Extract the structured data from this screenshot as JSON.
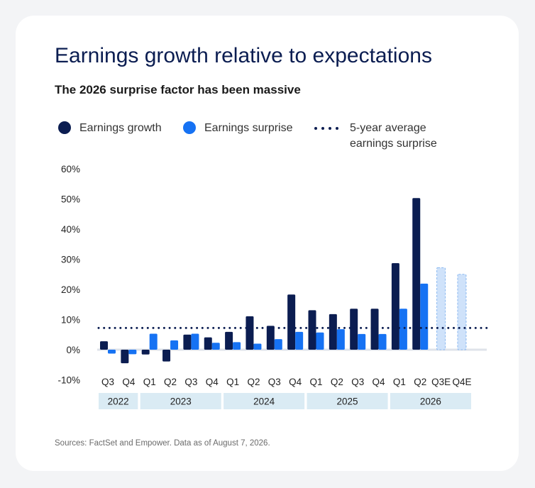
{
  "title": "Earnings growth relative to expectations",
  "subtitle": "The 2026 surprise factor has been massive",
  "legend": {
    "growth": "Earnings growth",
    "surprise": "Earnings surprise",
    "average_line1": "5-year average",
    "average_line2": "earnings surprise"
  },
  "source": "Sources: FactSet and Empower. Data as of August 7, 2026.",
  "colors": {
    "growth": "#0b1d51",
    "surprise": "#1672f3",
    "estimate_fill": "#cfe2fa",
    "estimate_border": "#8cb9f0",
    "year_band": "#daebf4",
    "baseline": "#dfe3ea",
    "average_line": "#0b1d51"
  },
  "chart_data": {
    "type": "bar",
    "categories": [
      "Q3",
      "Q4",
      "Q1",
      "Q2",
      "Q3",
      "Q4",
      "Q1",
      "Q2",
      "Q3",
      "Q4",
      "Q1",
      "Q2",
      "Q3",
      "Q4",
      "Q1",
      "Q2",
      "Q3E",
      "Q4E"
    ],
    "year_groups": [
      {
        "label": "2022",
        "start": 0,
        "end": 1
      },
      {
        "label": "2023",
        "start": 2,
        "end": 5
      },
      {
        "label": "2024",
        "start": 6,
        "end": 9
      },
      {
        "label": "2025",
        "start": 10,
        "end": 13
      },
      {
        "label": "2026",
        "start": 14,
        "end": 17
      }
    ],
    "series": [
      {
        "name": "Earnings growth",
        "values": [
          2.8,
          -4.5,
          -1.6,
          -3.9,
          5.0,
          4.1,
          5.9,
          11.1,
          7.9,
          18.3,
          13.1,
          11.8,
          13.6,
          13.6,
          28.7,
          50.3,
          null,
          null
        ]
      },
      {
        "name": "Earnings surprise",
        "values": [
          -1.3,
          -1.5,
          5.3,
          3.1,
          5.3,
          2.3,
          2.5,
          2.0,
          3.5,
          5.9,
          5.7,
          6.8,
          5.2,
          5.2,
          13.6,
          21.9,
          null,
          null
        ]
      }
    ],
    "estimates": [
      {
        "category": "Q3E",
        "value": 27.2
      },
      {
        "category": "Q4E",
        "value": 25.0
      }
    ],
    "reference_line": {
      "name": "5-year average earnings surprise",
      "value": 7.2
    },
    "y_ticks": [
      "60%",
      "50%",
      "40%",
      "30%",
      "20%",
      "10%",
      "0%",
      "-10%"
    ],
    "ylim": [
      -10,
      60
    ],
    "legend_position": "top",
    "grid": false
  }
}
